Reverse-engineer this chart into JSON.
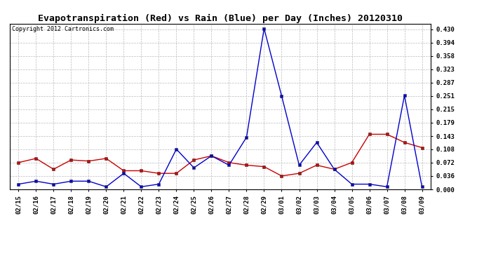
{
  "title": "Evapotranspiration (Red) vs Rain (Blue) per Day (Inches) 20120310",
  "copyright": "Copyright 2012 Cartronics.com",
  "x_labels": [
    "02/15",
    "02/16",
    "02/17",
    "02/18",
    "02/19",
    "02/20",
    "02/21",
    "02/22",
    "02/23",
    "02/24",
    "02/25",
    "02/26",
    "02/27",
    "02/28",
    "02/29",
    "03/01",
    "03/02",
    "03/03",
    "03/04",
    "03/05",
    "03/06",
    "03/07",
    "03/08",
    "03/09"
  ],
  "red_data": [
    0.072,
    0.083,
    0.054,
    0.079,
    0.076,
    0.083,
    0.05,
    0.05,
    0.043,
    0.043,
    0.079,
    0.09,
    0.072,
    0.065,
    0.061,
    0.036,
    0.043,
    0.065,
    0.054,
    0.072,
    0.148,
    0.148,
    0.126,
    0.112
  ],
  "blue_data": [
    0.014,
    0.022,
    0.014,
    0.022,
    0.022,
    0.007,
    0.043,
    0.007,
    0.014,
    0.108,
    0.058,
    0.09,
    0.065,
    0.14,
    0.432,
    0.251,
    0.065,
    0.126,
    0.054,
    0.014,
    0.014,
    0.007,
    0.252,
    0.007
  ],
  "red_color": "#cc0000",
  "blue_color": "#0000cc",
  "bg_color": "#ffffff",
  "grid_color": "#bbbbbb",
  "y_ticks": [
    0.0,
    0.036,
    0.072,
    0.108,
    0.143,
    0.179,
    0.215,
    0.251,
    0.287,
    0.323,
    0.358,
    0.394,
    0.43
  ],
  "ylim": [
    0.0,
    0.445
  ],
  "title_fontsize": 9.5,
  "tick_fontsize": 6.5,
  "copyright_fontsize": 6
}
